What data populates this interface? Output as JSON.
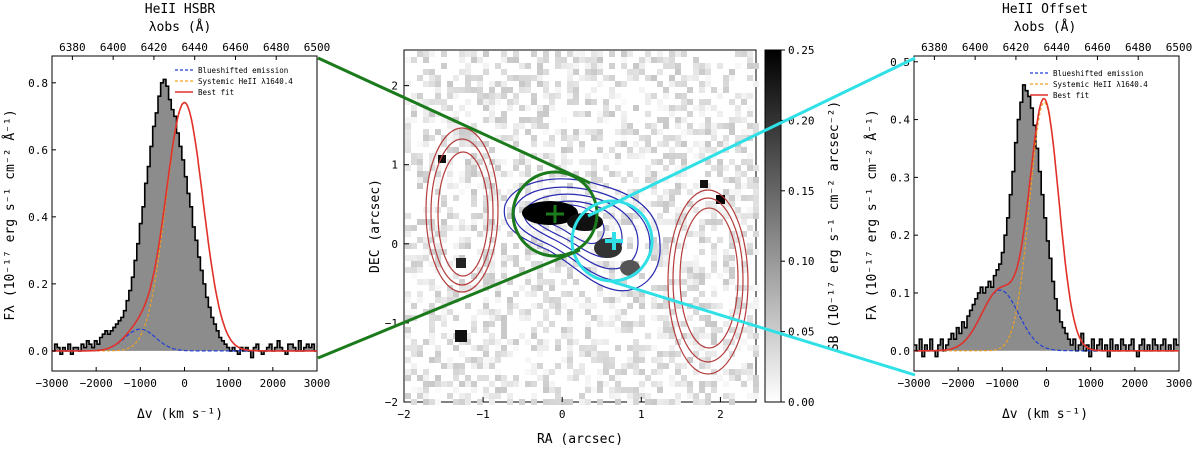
{
  "colors": {
    "hist_fill": "#8c8c8c",
    "best_fit": "#e0312b",
    "blue_component": "#1f3fd6",
    "systemic_component": "#f0a020",
    "green_link": "#1b7a1b",
    "cyan_link": "#2fe0e6",
    "contour_red": "#b53c3c",
    "contour_blue": "#2a2ab0"
  },
  "left_panel": {
    "title": "HeII HSBR",
    "top_axis_label": "λobs (Å)",
    "top_ticks": [
      "6380",
      "6400",
      "6420",
      "6440",
      "6460",
      "6480",
      "6500"
    ],
    "xlabel": "Δv (km s⁻¹)",
    "ylabel": "Fλ (10⁻¹⁷ erg s⁻¹ cm⁻² Å⁻¹)",
    "legend": [
      "Blueshifted emission",
      "Systemic HeII λ1640.4",
      "Best fit"
    ]
  },
  "center_panel": {
    "xlabel": "RA (arcsec)",
    "ylabel": "DEC (arcsec)",
    "colorbar_label": "SB (10⁻¹⁷ erg s⁻¹ cm⁻² arcsec⁻²)",
    "colorbar_ticks": [
      "0.25",
      "0.20",
      "0.15",
      "0.10",
      "0.05",
      "0.00"
    ]
  },
  "right_panel": {
    "title": "HeII Offset",
    "top_axis_label": "λobs (Å)",
    "top_ticks": [
      "6380",
      "6400",
      "6420",
      "6440",
      "6460",
      "6480",
      "6500"
    ],
    "xlabel": "Δv (km s⁻¹)",
    "ylabel": "Fλ (10⁻¹⁷ erg s⁻¹ cm⁻² Å⁻¹)",
    "legend": [
      "Blueshifted emission",
      "Systemic HeII λ1640.4",
      "Best fit"
    ]
  },
  "chart_data": [
    {
      "type": "area",
      "title": "HeII HSBR",
      "xlabel": "Δv (km s⁻¹)",
      "ylabel": "Fλ (10⁻¹⁷ erg s⁻¹ cm⁻² Å⁻¹)",
      "xlim": [
        -3000,
        3000
      ],
      "ylim": [
        -0.06,
        0.88
      ],
      "x_ticks": [
        -3000,
        -2000,
        -1000,
        0,
        1000,
        2000,
        3000
      ],
      "y_ticks": [
        0.0,
        0.2,
        0.4,
        0.6,
        0.8
      ],
      "top_axis": {
        "label": "λobs (Å)",
        "lim": [
          6370,
          6500
        ],
        "ticks": [
          6380,
          6400,
          6420,
          6440,
          6460,
          6480,
          6500
        ]
      },
      "series": [
        {
          "name": "Blueshifted emission",
          "style": "dashed",
          "model": {
            "amp": 0.065,
            "center": -1000,
            "sigma": 350
          }
        },
        {
          "name": "Systemic HeII λ1640.4",
          "style": "dashed",
          "model": {
            "amp": 0.74,
            "center": 0,
            "sigma": 420
          }
        },
        {
          "name": "Best fit",
          "style": "solid",
          "model": "sum"
        }
      ],
      "histogram": {
        "x_start": -3000,
        "x_step": 60,
        "values": [
          0.0,
          0.02,
          0.01,
          -0.01,
          0.01,
          0.0,
          0.02,
          -0.01,
          0.01,
          0.01,
          0.0,
          0.02,
          0.01,
          0.03,
          0.02,
          0.01,
          0.03,
          0.02,
          0.04,
          0.05,
          0.06,
          0.05,
          0.06,
          0.07,
          0.08,
          0.09,
          0.1,
          0.12,
          0.15,
          0.18,
          0.22,
          0.27,
          0.32,
          0.38,
          0.43,
          0.5,
          0.55,
          0.61,
          0.67,
          0.71,
          0.76,
          0.8,
          0.81,
          0.79,
          0.75,
          0.72,
          0.7,
          0.65,
          0.61,
          0.57,
          0.52,
          0.47,
          0.43,
          0.37,
          0.33,
          0.28,
          0.24,
          0.2,
          0.16,
          0.13,
          0.1,
          0.08,
          0.06,
          0.04,
          0.03,
          0.02,
          0.01,
          0.0,
          0.01,
          0.0,
          -0.01,
          0.01,
          0.0,
          0.01,
          0.0,
          -0.02,
          0.01,
          0.02,
          0.0,
          -0.01,
          0.0,
          0.01,
          0.02,
          0.0,
          0.01,
          0.03,
          0.01,
          0.0,
          -0.01,
          0.02,
          0.02,
          0.01,
          0.0,
          0.03,
          0.0,
          0.01,
          0.02,
          0.01,
          0.02,
          0.0
        ]
      }
    },
    {
      "type": "heatmap",
      "xlabel": "RA (arcsec)",
      "ylabel": "DEC (arcsec)",
      "xlim": [
        -2,
        2.45
      ],
      "ylim": [
        -2,
        2.45
      ],
      "x_ticks": [
        -2,
        -1,
        0,
        1,
        2
      ],
      "y_ticks": [
        -2,
        -1,
        0,
        1,
        2
      ],
      "colorbar": {
        "label": "SB (10⁻¹⁷ erg s⁻¹ cm⁻² arcsec⁻²)",
        "range": [
          0.0,
          0.25
        ],
        "ticks": [
          0.0,
          0.05,
          0.1,
          0.15,
          0.2,
          0.25
        ]
      },
      "markers": [
        {
          "name": "HSBR",
          "ra": -0.1,
          "dec": 0.35,
          "marker": "cross",
          "region_radius": 0.5
        },
        {
          "name": "Offset",
          "ra": 0.65,
          "dec": 0.05,
          "marker": "cross",
          "region_radius": 0.45
        }
      ]
    },
    {
      "type": "area",
      "title": "HeII Offset",
      "xlabel": "Δv (km s⁻¹)",
      "ylabel": "Fλ (10⁻¹⁷ erg s⁻¹ cm⁻² Å⁻¹)",
      "xlim": [
        -3000,
        3000
      ],
      "ylim": [
        -0.035,
        0.51
      ],
      "x_ticks": [
        -3000,
        -2000,
        -1000,
        0,
        1000,
        2000,
        3000
      ],
      "y_ticks": [
        0.0,
        0.1,
        0.2,
        0.3,
        0.4,
        0.5
      ],
      "top_axis": {
        "label": "λobs (Å)",
        "lim": [
          6370,
          6500
        ],
        "ticks": [
          6380,
          6400,
          6420,
          6440,
          6460,
          6480,
          6500
        ]
      },
      "series": [
        {
          "name": "Blueshifted emission",
          "style": "dashed",
          "model": {
            "amp": 0.105,
            "center": -1050,
            "sigma": 420
          }
        },
        {
          "name": "Systemic HeII λ1640.4",
          "style": "dashed",
          "model": {
            "amp": 0.43,
            "center": -50,
            "sigma": 330
          }
        },
        {
          "name": "Best fit",
          "style": "solid",
          "model": "sum"
        }
      ],
      "histogram": {
        "x_start": -3000,
        "x_step": 60,
        "values": [
          0.01,
          0.0,
          0.02,
          -0.01,
          0.01,
          0.0,
          0.02,
          0.0,
          -0.01,
          0.01,
          0.02,
          0.0,
          0.01,
          0.02,
          0.03,
          0.02,
          0.04,
          0.03,
          0.05,
          0.04,
          0.06,
          0.07,
          0.08,
          0.09,
          0.1,
          0.11,
          0.1,
          0.11,
          0.12,
          0.11,
          0.13,
          0.14,
          0.15,
          0.17,
          0.2,
          0.23,
          0.27,
          0.31,
          0.36,
          0.4,
          0.43,
          0.46,
          0.45,
          0.44,
          0.42,
          0.39,
          0.35,
          0.31,
          0.27,
          0.23,
          0.19,
          0.16,
          0.12,
          0.09,
          0.07,
          0.05,
          0.04,
          0.03,
          0.02,
          0.01,
          0.02,
          0.0,
          0.01,
          0.03,
          0.0,
          0.01,
          -0.01,
          0.02,
          0.0,
          0.01,
          0.02,
          0.0,
          0.01,
          -0.01,
          0.02,
          0.0,
          0.01,
          0.0,
          0.02,
          0.01,
          0.0,
          0.01,
          0.02,
          0.0,
          -0.01,
          0.01,
          0.02,
          0.0,
          0.01,
          0.0,
          0.02,
          0.01,
          0.0,
          0.01,
          0.02,
          0.0,
          0.01,
          0.0,
          0.02,
          0.01
        ]
      }
    }
  ]
}
